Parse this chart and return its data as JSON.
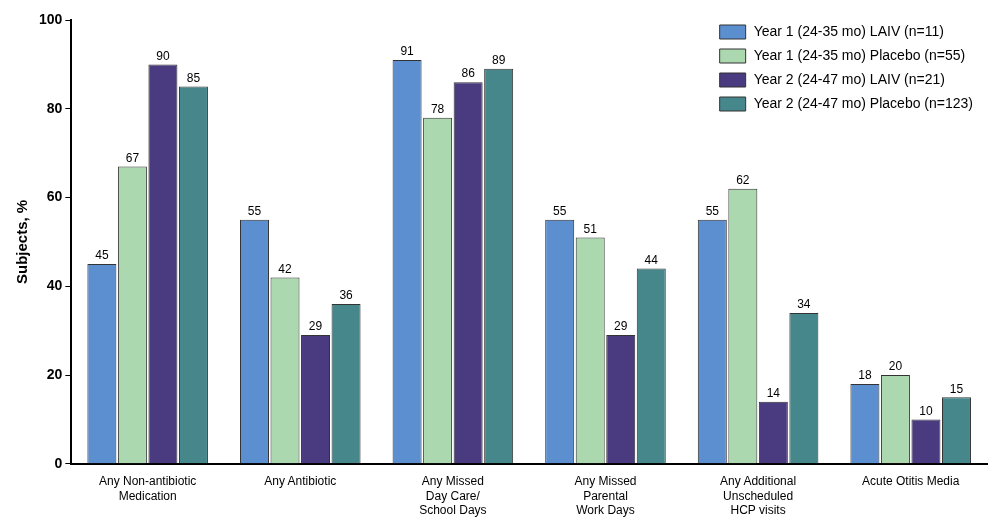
{
  "chart_data": {
    "type": "bar",
    "categories": [
      "Any Non-antibiotic\nMedication",
      "Any Antibiotic",
      "Any Missed\nDay Care/\nSchool Days",
      "Any Missed\nParental\nWork Days",
      "Any Additional\nUnscheduled\nHCP visits",
      "Acute Otitis Media"
    ],
    "series": [
      {
        "name": "Year 1 (24-35 mo) LAIV (n=11)",
        "color": "#5b8fd0",
        "values": [
          45,
          55,
          91,
          55,
          55,
          18
        ]
      },
      {
        "name": "Year 1 (24-35 mo) Placebo (n=55)",
        "color": "#acd8b0",
        "values": [
          67,
          42,
          78,
          51,
          62,
          20
        ]
      },
      {
        "name": "Year 2 (24-47 mo) LAIV (n=21)",
        "color": "#4a3a80",
        "values": [
          90,
          29,
          86,
          29,
          14,
          10
        ]
      },
      {
        "name": "Year 2 (24-47 mo) Placebo (n=123)",
        "color": "#46878c",
        "values": [
          85,
          36,
          89,
          44,
          34,
          15
        ]
      }
    ],
    "ylabel": "Subjects, %",
    "ylim": [
      0,
      100
    ],
    "yticks": [
      0,
      20,
      40,
      60,
      80,
      100
    ],
    "grid": false,
    "legend": "top right",
    "data_labels": true
  }
}
